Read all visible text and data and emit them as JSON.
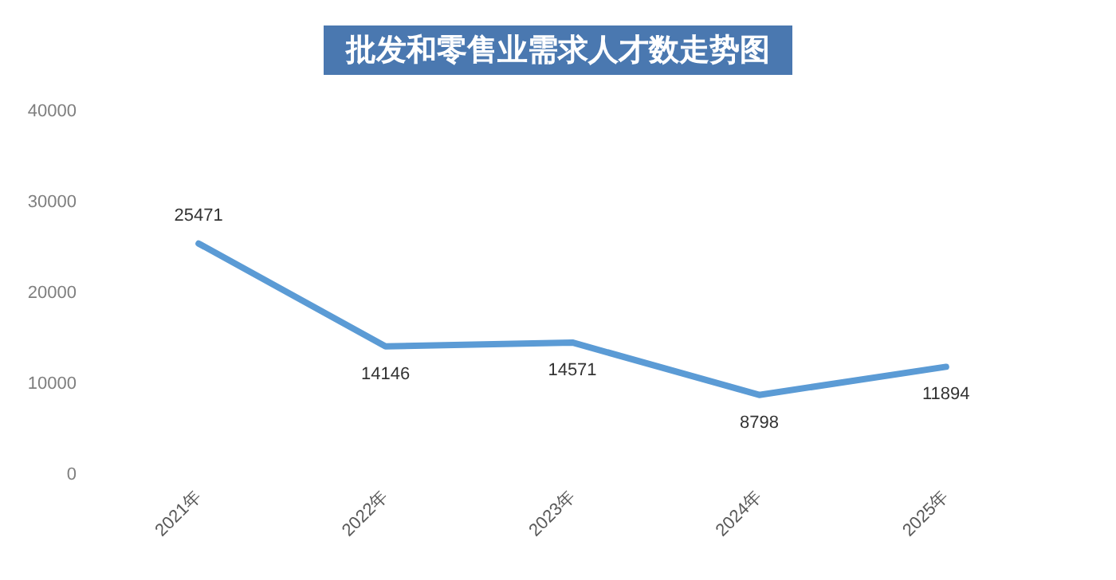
{
  "chart_data": {
    "type": "line",
    "title": "批发和零售业需求人才数走势图",
    "categories": [
      "2021年",
      "2022年",
      "2023年",
      "2024年",
      "2025年"
    ],
    "series": [
      {
        "color": "#5b9bd5",
        "values": [
          25471,
          14146,
          14571,
          8798,
          11894
        ]
      }
    ],
    "ylim": [
      0,
      40000
    ],
    "yticks": [
      0,
      10000,
      20000,
      30000,
      40000
    ],
    "grid": false,
    "marker": "none",
    "line_style": "solid",
    "data_labels": true
  }
}
